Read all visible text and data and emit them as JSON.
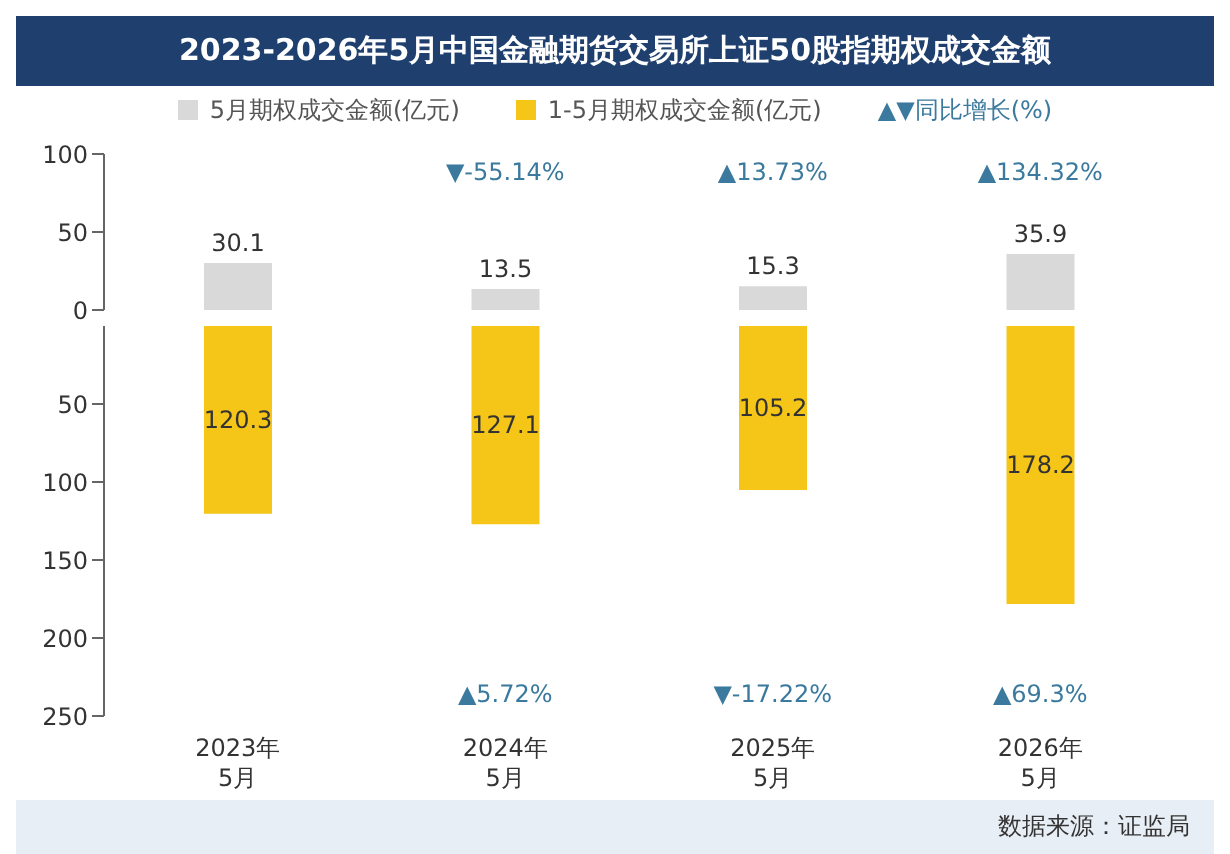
{
  "chart_data": [
    {
      "type": "bar",
      "title": "2023-2026年5月中国金融期货交易所上证50股指期权成交金额",
      "legend": "top",
      "legend_title": "▲▼同比增长(%)",
      "categories": [
        null,
        null,
        null,
        null
      ],
      "series": [
        {
          "name": "5月期权成交金额(亿元)",
          "color": "#d9d9d9",
          "values": [
            30.1,
            13.5,
            15.3,
            35.9
          ]
        }
      ],
      "data_labels": true,
      "ylim": [
        0,
        100
      ],
      "yticks": [
        0,
        50,
        100
      ],
      "tick_labels": "y",
      "annotations": [
        "▼-55.14%",
        "▲13.73%",
        "▲134.32%"
      ]
    },
    {
      "type": "bar",
      "legend": "top",
      "categories": [
        "2023年5月",
        "2024年5月",
        "2025年5月",
        "2026年5月"
      ],
      "series": [
        {
          "name": "1-5月期权成交金额(亿元)",
          "color": "#f5c518",
          "values": [
            120.3,
            127.1,
            105.2,
            178.2
          ]
        }
      ],
      "data_labels": true,
      "ylim": [
        250,
        0
      ],
      "yticks": [
        50,
        100,
        150,
        200,
        250
      ],
      "annotations": [
        "▲5.72%",
        "▼-17.22%",
        "▲69.3%",
        "数据来源：证监局"
      ]
    }
  ]
}
